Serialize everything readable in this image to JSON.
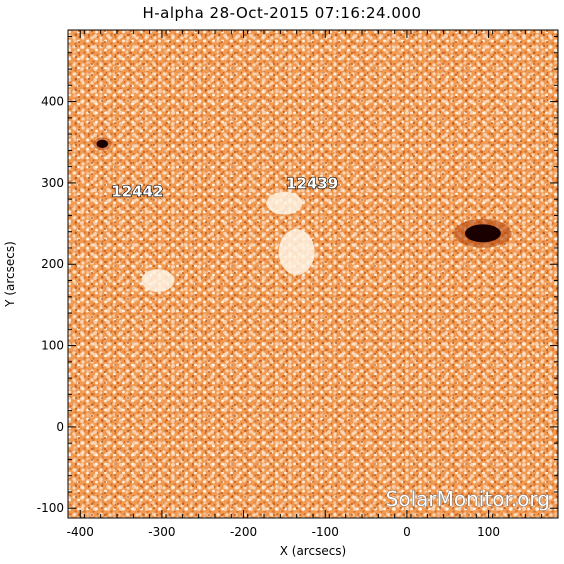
{
  "title": "H-alpha 28-Oct-2015 07:16:24.000",
  "watermark": "SolarMonitor.org",
  "colors": {
    "background": "#ffffff",
    "disk_base": "#f09a52",
    "disk_bright": "#fff3e4",
    "disk_dark": "#b5480e",
    "sunspot": "#1a0000"
  },
  "chart_data": {
    "type": "image",
    "xlabel": "X (arcsecs)",
    "ylabel": "Y (arcsecs)",
    "xlim": [
      -415,
      185
    ],
    "ylim": [
      -112,
      488
    ],
    "x_ticks": [
      -400,
      -300,
      -200,
      -100,
      0,
      100
    ],
    "y_ticks": [
      -100,
      0,
      100,
      200,
      300,
      400
    ],
    "x_tick_labels": [
      "-400",
      "-300",
      "-200",
      "-100",
      "0",
      "100"
    ],
    "y_tick_labels": [
      "-100",
      "0",
      "100",
      "200",
      "300",
      "400"
    ],
    "regions": [
      {
        "label": "12442",
        "x": -362,
        "y": 283
      },
      {
        "label": "12439",
        "x": -148,
        "y": 293
      }
    ],
    "sunspots": [
      {
        "x": 93,
        "y": 238,
        "rx": 22,
        "ry": 11
      },
      {
        "x": -373,
        "y": 348,
        "rx": 7,
        "ry": 5
      }
    ],
    "bright_plage": [
      {
        "x": -150,
        "y": 275,
        "rx": 22,
        "ry": 14
      },
      {
        "x": -135,
        "y": 215,
        "rx": 22,
        "ry": 28
      },
      {
        "x": -305,
        "y": 180,
        "rx": 20,
        "ry": 14
      }
    ]
  }
}
